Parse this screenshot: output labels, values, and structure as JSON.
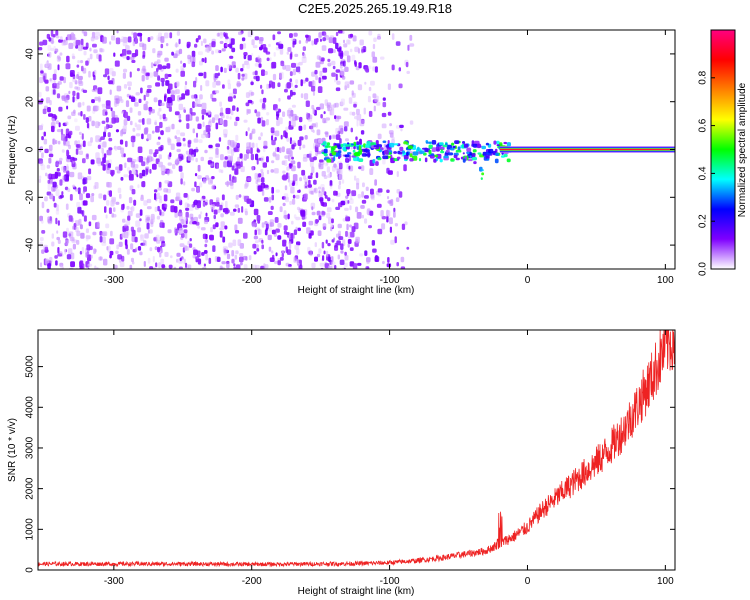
{
  "title": "C2E5.2025.265.19.49.R18",
  "chart_data": [
    {
      "type": "heatmap",
      "xlabel": "Height of straight line (km)",
      "ylabel": "Frequency (Hz)",
      "xlim": [
        -355,
        107
      ],
      "ylim": [
        -50,
        50
      ],
      "xticks": [
        -300,
        -200,
        -100,
        0,
        100
      ],
      "yticks": [
        -40,
        -20,
        0,
        20,
        40
      ],
      "colorbar": {
        "label": "Normalized spectral amplitude",
        "range": [
          0,
          1
        ],
        "ticks": [
          0.0,
          0.2,
          0.4,
          0.6,
          0.8
        ],
        "colors": [
          "#ffffff",
          "#7f00ff",
          "#0000ff",
          "#00ffff",
          "#00ff00",
          "#ffff00",
          "#ff8000",
          "#ff0000",
          "#ff0080"
        ]
      },
      "features": {
        "noise_region_x": [
          -355,
          -80
        ],
        "carrier_start_x": -20,
        "carrier_frequency": 0
      }
    },
    {
      "type": "line",
      "xlabel": "Height of straight line (km)",
      "ylabel": "SNR (10 * v/v)",
      "xlim": [
        -355,
        107
      ],
      "ylim": [
        0,
        5900
      ],
      "xticks": [
        -300,
        -200,
        -100,
        0,
        100
      ],
      "yticks": [
        0,
        1000,
        2000,
        3000,
        4000,
        5000
      ],
      "color": "#ee2222",
      "series": [
        {
          "x": [
            -355,
            -300,
            -250,
            -200,
            -150,
            -120,
            -100,
            -80,
            -60,
            -45,
            -30,
            -20,
            -10,
            0,
            10,
            20,
            30,
            40,
            50,
            60,
            70,
            80,
            90,
            100,
            107
          ],
          "y": [
            150,
            150,
            150,
            140,
            150,
            160,
            180,
            230,
            310,
            390,
            470,
            650,
            820,
            1050,
            1450,
            1750,
            2050,
            2350,
            2650,
            3000,
            3450,
            4050,
            4700,
            5500,
            5700
          ]
        }
      ]
    }
  ]
}
